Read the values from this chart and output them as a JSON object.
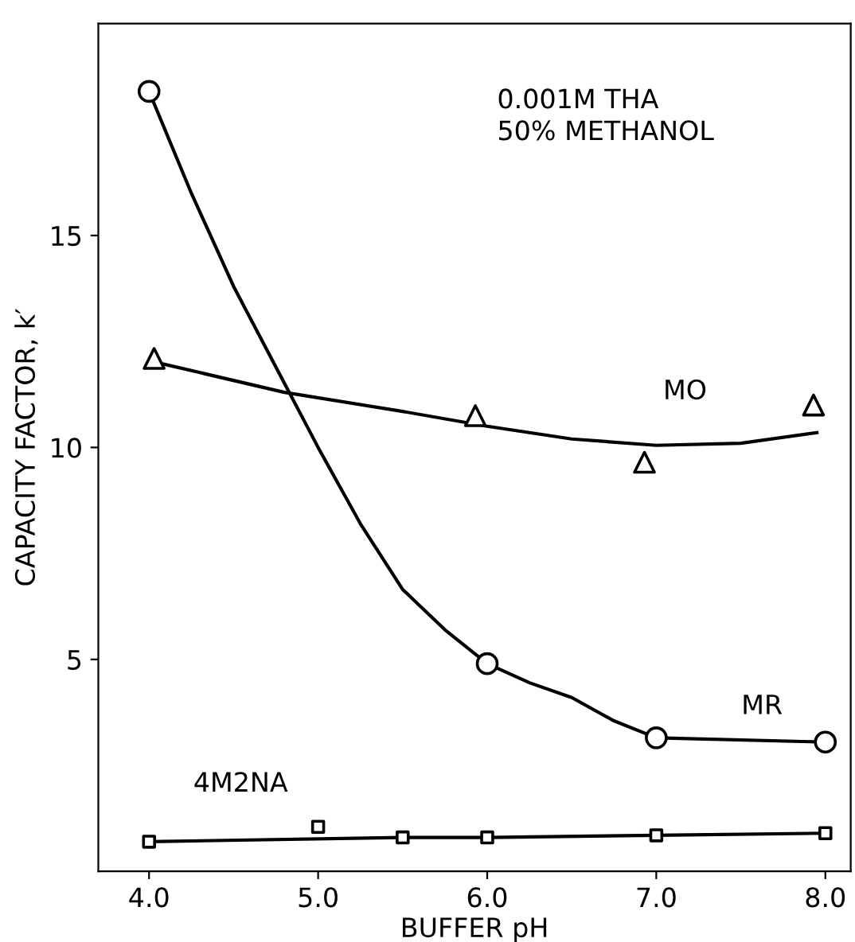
{
  "chart_data": {
    "type": "scatter",
    "xlabel": "BUFFER pH",
    "ylabel": "CAPACITY FACTOR, k′",
    "xlim": [
      3.7,
      8.15
    ],
    "ylim": [
      0,
      20
    ],
    "xticks": [
      {
        "value": 4,
        "label": "4.0"
      },
      {
        "value": 5,
        "label": "5.0"
      },
      {
        "value": 6,
        "label": "6.0"
      },
      {
        "value": 7,
        "label": "7.0"
      },
      {
        "value": 8,
        "label": "8.0"
      }
    ],
    "yticks": [
      5,
      10,
      15
    ],
    "grid": false,
    "legend": false,
    "series": [
      {
        "name": "MR",
        "marker": "circle",
        "color": "#000000",
        "x": [
          4.0,
          6.0,
          7.0,
          8.0
        ],
        "values": [
          18.4,
          4.9,
          3.15,
          3.05
        ]
      },
      {
        "type": "line",
        "marker": "none",
        "line_style": "solid",
        "color": "#000000",
        "x": [
          4.0,
          4.25,
          4.5,
          4.75,
          5.0,
          5.25,
          5.5,
          5.75,
          6.0,
          6.25,
          6.5,
          6.75,
          7.0,
          8.0
        ],
        "values": [
          18.4,
          16.0,
          13.8,
          11.9,
          10.0,
          8.2,
          6.65,
          5.7,
          4.9,
          4.45,
          4.1,
          3.55,
          3.15,
          3.05
        ]
      },
      {
        "name": "MO",
        "marker": "triangle",
        "color": "#000000",
        "x": [
          4.03,
          5.93,
          6.93,
          7.93
        ],
        "values": [
          12.1,
          10.75,
          9.65,
          11.0
        ]
      },
      {
        "type": "line",
        "marker": "none",
        "line_style": "solid",
        "color": "#000000",
        "x": [
          4.05,
          4.8,
          5.5,
          6.0,
          6.5,
          7.0,
          7.5,
          7.95
        ],
        "values": [
          12.0,
          11.3,
          10.85,
          10.5,
          10.2,
          10.05,
          10.1,
          10.35
        ]
      },
      {
        "name": "4M2NA",
        "marker": "square",
        "color": "#000000",
        "x": [
          4.0,
          5.0,
          5.5,
          6.0,
          7.0,
          8.0
        ],
        "values": [
          0.7,
          1.05,
          0.8,
          0.8,
          0.85,
          0.9
        ]
      },
      {
        "type": "line",
        "marker": "none",
        "line_style": "solid",
        "color": "#000000",
        "x": [
          4.0,
          5.5,
          6.0,
          7.0,
          8.0
        ],
        "values": [
          0.7,
          0.8,
          0.8,
          0.85,
          0.9
        ]
      }
    ],
    "annotations": [
      "0.001M THA\n50% METHANOL"
    ]
  }
}
